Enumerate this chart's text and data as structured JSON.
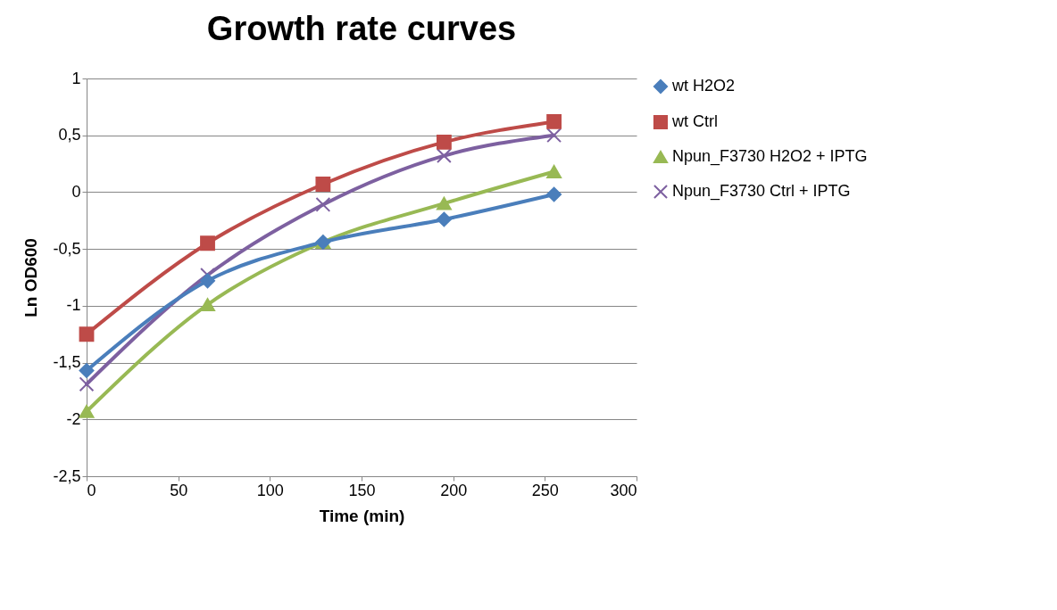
{
  "chart_data": {
    "type": "line",
    "title": "Growth rate curves",
    "xlabel": "Time (min)",
    "ylabel": "Ln OD600",
    "x": [
      0,
      66,
      129,
      195,
      255
    ],
    "xlim": [
      0,
      300
    ],
    "xticks": [
      0,
      50,
      100,
      150,
      200,
      250,
      300
    ],
    "ylim": [
      -2.5,
      1
    ],
    "yticks": [
      {
        "value": -2.5,
        "label": "-2,5"
      },
      -2,
      {
        "value": -1.5,
        "label": "-1,5"
      },
      -1,
      {
        "value": -0.5,
        "label": "-0,5"
      },
      0,
      {
        "value": 0.5,
        "label": "0,5"
      },
      1
    ],
    "grid": "y",
    "legend": "right",
    "line_style": "solid",
    "series": [
      {
        "name": "wt H2O2",
        "color": "#4a7ebb",
        "marker": "diamond",
        "values": [
          -1.57,
          -0.78,
          -0.44,
          -0.24,
          -0.02
        ]
      },
      {
        "name": "wt Ctrl",
        "color": "#be4b48",
        "marker": "square",
        "values": [
          -1.25,
          -0.45,
          0.07,
          0.44,
          0.62
        ]
      },
      {
        "name": "Npun_F3730 H2O2 + IPTG",
        "color": "#98b954",
        "marker": "triangle",
        "values": [
          -1.93,
          -0.99,
          -0.44,
          -0.1,
          0.18
        ]
      },
      {
        "name": "Npun_F3730 Ctrl + IPTG",
        "color": "#7d60a0",
        "marker": "cross",
        "values": [
          -1.69,
          -0.73,
          -0.11,
          0.32,
          0.5
        ]
      }
    ]
  }
}
